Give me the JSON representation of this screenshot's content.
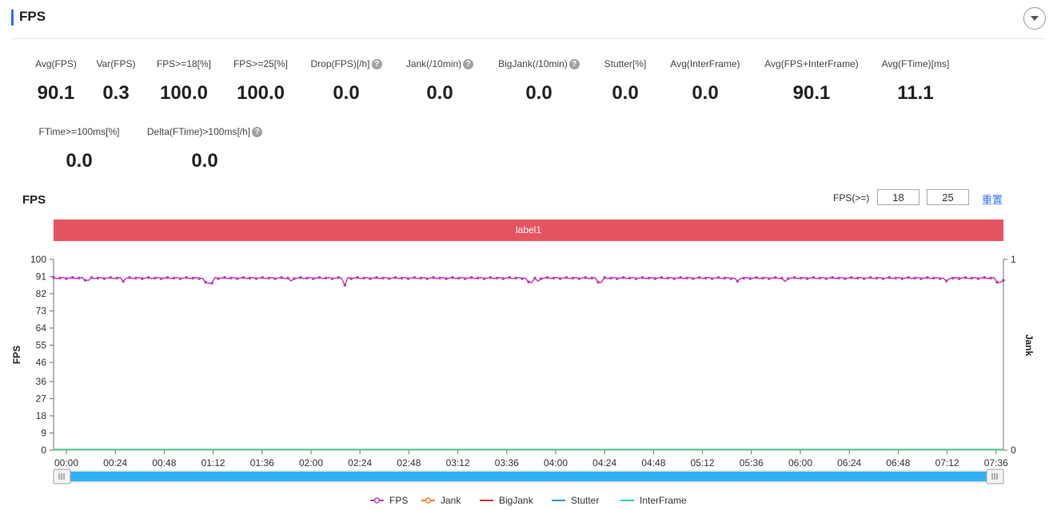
{
  "panel": {
    "title": "FPS"
  },
  "metrics": [
    {
      "label": "Avg(FPS)",
      "value": "90.1",
      "help": false
    },
    {
      "label": "Var(FPS)",
      "value": "0.3",
      "help": false
    },
    {
      "label": "FPS>=18[%]",
      "value": "100.0",
      "help": false
    },
    {
      "label": "FPS>=25[%]",
      "value": "100.0",
      "help": false
    },
    {
      "label": "Drop(FPS)[/h]",
      "value": "0.0",
      "help": true
    },
    {
      "label": "Jank(/10min)",
      "value": "0.0",
      "help": true
    },
    {
      "label": "BigJank(/10min)",
      "value": "0.0",
      "help": true
    },
    {
      "label": "Stutter[%]",
      "value": "0.0",
      "help": false
    },
    {
      "label": "Avg(InterFrame)",
      "value": "0.0",
      "help": false
    },
    {
      "label": "Avg(FPS+InterFrame)",
      "value": "90.1",
      "help": false
    },
    {
      "label": "Avg(FTime)[ms]",
      "value": "11.1",
      "help": false
    },
    {
      "label": "FTime>=100ms[%]",
      "value": "0.0",
      "help": false
    },
    {
      "label": "Delta(FTime)>100ms[/h]",
      "value": "0.0",
      "help": true
    }
  ],
  "chart_section": {
    "title": "FPS",
    "threshold_label": "FPS(>=)",
    "threshold_1": "18",
    "threshold_2": "25",
    "reset_label": "重置",
    "band_label": "label1"
  },
  "colors": {
    "accent": "#2f6fed",
    "band": "#e65462",
    "fps": "#c23fb5",
    "jank": "#f07d2a",
    "bigjank": "#d9302c",
    "stutter": "#3a8fe0",
    "interframe": "#36c9c6",
    "zoom_bar": "#2fb2ef"
  },
  "chart_data": {
    "type": "line",
    "x_ticks": [
      "00:00",
      "00:24",
      "00:48",
      "01:12",
      "01:36",
      "02:00",
      "02:24",
      "02:48",
      "03:12",
      "03:36",
      "04:00",
      "04:24",
      "04:48",
      "05:12",
      "05:36",
      "06:00",
      "06:24",
      "06:48",
      "07:12",
      "07:36"
    ],
    "y_left_label": "FPS",
    "y_left_ticks": [
      0,
      9,
      18,
      27,
      36,
      46,
      55,
      64,
      73,
      82,
      91,
      100
    ],
    "y_left_range": [
      0,
      100
    ],
    "y_right_label": "Jank",
    "y_right_ticks": [
      0,
      1
    ],
    "y_right_range": [
      0,
      1
    ],
    "x_range_seconds": [
      0,
      28120
    ],
    "series": [
      {
        "name": "FPS",
        "axis": "left",
        "baseline": 90.1,
        "dips": [
          [
            0.035,
            89
          ],
          [
            0.073,
            88.5
          ],
          [
            0.16,
            88
          ],
          [
            0.165,
            87.5
          ],
          [
            0.25,
            88.7
          ],
          [
            0.308,
            86.5
          ],
          [
            0.5,
            88.2
          ],
          [
            0.5025,
            87.8
          ],
          [
            0.51,
            88.5
          ],
          [
            0.575,
            88
          ],
          [
            0.72,
            88.6
          ],
          [
            0.77,
            88.4
          ],
          [
            0.94,
            88.7
          ],
          [
            0.995,
            88
          ],
          [
            1.0,
            89
          ]
        ]
      },
      {
        "name": "Jank",
        "axis": "right",
        "constant": 0
      },
      {
        "name": "BigJank",
        "axis": "right",
        "constant": 0
      },
      {
        "name": "Stutter",
        "axis": "left",
        "constant": 0
      },
      {
        "name": "InterFrame",
        "axis": "left",
        "constant": 0
      }
    ],
    "legend_position": "bottom",
    "grid": false,
    "zoom_range": [
      0,
      1
    ]
  },
  "legend": [
    "FPS",
    "Jank",
    "BigJank",
    "Stutter",
    "InterFrame"
  ]
}
